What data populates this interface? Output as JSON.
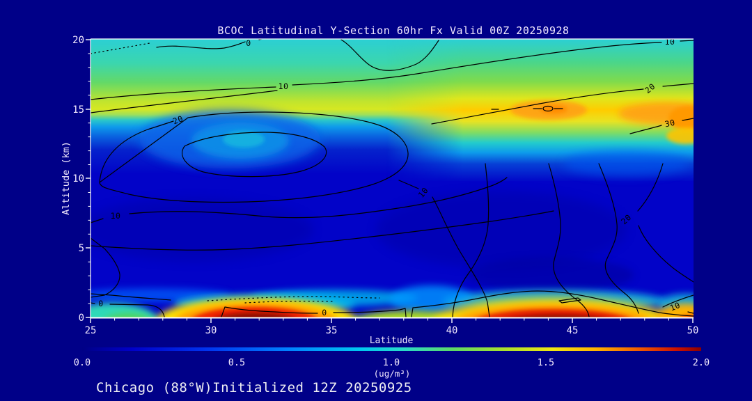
{
  "title": "BCOC Latitudinal Y-Section 60hr  Fx Valid 00Z 20250928",
  "caption": "Chicago (88°W)Initialized 12Z 20250925",
  "axes": {
    "y": {
      "label": "Altitude (km)",
      "ticks": [
        "20",
        "15",
        "10",
        "5",
        "0"
      ]
    },
    "x": {
      "label": "Latitude",
      "ticks": [
        "25",
        "30",
        "35",
        "40",
        "45",
        "50"
      ]
    }
  },
  "colorbar": {
    "ticks": [
      "0.0",
      "0.5",
      "1.0",
      "1.5",
      "2.0"
    ],
    "unit": "(ug/m³)"
  },
  "contour_label_instances": [
    "0",
    "10",
    "10",
    "20",
    "30",
    "20",
    "10",
    "10",
    "20",
    "10",
    "0",
    "0"
  ],
  "colors": {
    "background": "#000088",
    "plot_base_blue": "#0203c8",
    "title_text": "#f2e9fe",
    "axis_text": "#f2e9fe",
    "caption_text": "#ededf2",
    "contour_line": "#000000",
    "frame": "#ffffff",
    "hot_core": "#8b0000",
    "hot_mid": "#e62200",
    "warm": "#ff9900",
    "band_yellow": "#ffd000",
    "band_green": "#66d94d",
    "band_cyan": "#2bcfd4"
  },
  "chart_data": {
    "type": "heatmap",
    "subtype": "filled-contour-cross-section",
    "title": "BCOC Latitudinal Y-Section 60hr  Fx Valid 00Z 20250928",
    "xlabel": "Latitude",
    "ylabel": "Altitude (km)",
    "x_latitude_deg": [
      25,
      27.5,
      30,
      32.5,
      35,
      37.5,
      40,
      42.5,
      45,
      47.5,
      50
    ],
    "y_altitude_km": [
      20,
      18,
      16,
      14,
      12,
      10,
      8,
      6,
      4,
      2,
      0
    ],
    "fill_units": "ug/m3",
    "fill_range": [
      0,
      2
    ],
    "fill_values_by_altitude_desc": [
      [
        0.85,
        0.85,
        0.85,
        0.85,
        0.85,
        0.85,
        0.85,
        0.8,
        0.8,
        0.8,
        0.8
      ],
      [
        1.0,
        1.0,
        1.05,
        1.05,
        1.05,
        1.0,
        1.05,
        1.05,
        1.0,
        0.95,
        0.95
      ],
      [
        1.3,
        1.25,
        1.2,
        1.2,
        1.2,
        1.25,
        1.3,
        1.35,
        1.45,
        1.4,
        1.5
      ],
      [
        0.45,
        0.4,
        0.4,
        0.45,
        0.5,
        0.55,
        0.9,
        1.2,
        1.5,
        1.35,
        1.45
      ],
      [
        0.3,
        0.35,
        0.5,
        0.55,
        0.5,
        0.4,
        0.6,
        0.75,
        0.8,
        0.75,
        0.7
      ],
      [
        0.2,
        0.3,
        0.4,
        0.45,
        0.4,
        0.3,
        0.3,
        0.3,
        0.35,
        0.4,
        0.35
      ],
      [
        0.2,
        0.25,
        0.3,
        0.3,
        0.3,
        0.25,
        0.25,
        0.25,
        0.3,
        0.3,
        0.3
      ],
      [
        0.15,
        0.2,
        0.2,
        0.2,
        0.2,
        0.2,
        0.2,
        0.2,
        0.25,
        0.25,
        0.25
      ],
      [
        0.15,
        0.15,
        0.15,
        0.15,
        0.2,
        0.2,
        0.2,
        0.2,
        0.25,
        0.3,
        0.3
      ],
      [
        0.3,
        0.25,
        0.2,
        0.3,
        0.4,
        0.35,
        0.3,
        0.35,
        0.4,
        0.45,
        0.5
      ],
      [
        0.8,
        0.9,
        1.9,
        2.0,
        1.8,
        1.3,
        1.9,
        2.0,
        2.0,
        1.7,
        1.5
      ]
    ],
    "overlay_line_contour_levels": [
      0,
      10,
      20,
      30
    ],
    "colorbar_ticks": [
      0.0,
      0.5,
      1.0,
      1.5,
      2.0
    ],
    "legend_position": "bottom",
    "grid": false
  }
}
